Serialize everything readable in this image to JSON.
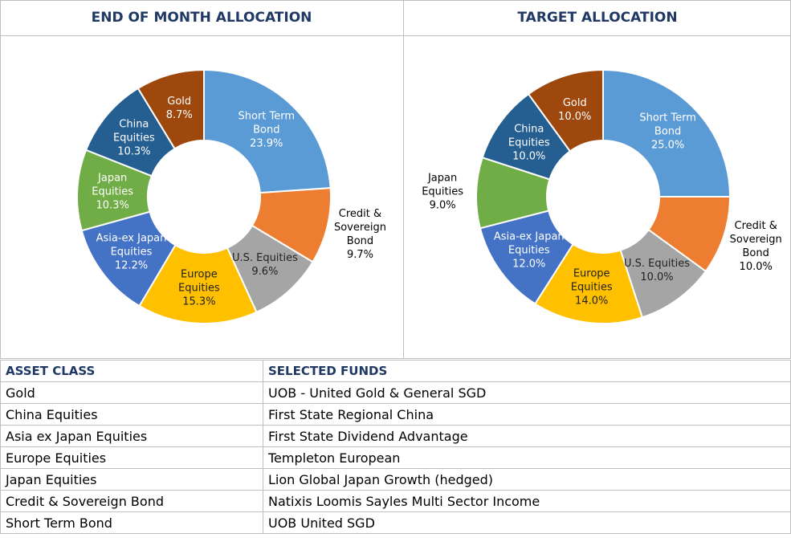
{
  "chart_data": [
    {
      "type": "pie",
      "title": "END OF MONTH ALLOCATION",
      "categories": [
        "Short Term Bond",
        "Credit & Sovereign Bond",
        "U.S. Equities",
        "Europe Equities",
        "Asia-ex Japan Equities",
        "Japan Equities",
        "China Equities",
        "Gold"
      ],
      "values": [
        23.9,
        9.7,
        9.6,
        15.3,
        12.2,
        10.3,
        10.3,
        8.7
      ],
      "value_labels": [
        "23.9%",
        "9.7%",
        "9.6%",
        "15.3%",
        "12.2%",
        "10.3%",
        "10.3%",
        "8.7%"
      ],
      "colors": [
        "#5b9bd5",
        "#ed7d31",
        "#a5a5a5",
        "#ffc000",
        "#4472c4",
        "#70ad47",
        "#255e91",
        "#9e480e"
      ]
    },
    {
      "type": "pie",
      "title": "TARGET ALLOCATION",
      "categories": [
        "Short Term Bond",
        "Credit & Sovereign Bond",
        "U.S. Equities",
        "Europe Equities",
        "Asia-ex Japan Equities",
        "Japan Equities",
        "China Equities",
        "Gold"
      ],
      "values": [
        25.0,
        10.0,
        10.0,
        14.0,
        12.0,
        9.0,
        10.0,
        10.0
      ],
      "value_labels": [
        "25.0%",
        "10.0%",
        "10.0%",
        "14.0%",
        "12.0%",
        "9.0%",
        "10.0%",
        "10.0%"
      ],
      "colors": [
        "#5b9bd5",
        "#ed7d31",
        "#a5a5a5",
        "#ffc000",
        "#4472c4",
        "#70ad47",
        "#255e91",
        "#9e480e"
      ]
    }
  ],
  "table": {
    "headers": [
      "ASSET CLASS",
      "SELECTED FUNDS"
    ],
    "rows": [
      [
        "Gold",
        "UOB - United Gold & General SGD"
      ],
      [
        "China Equities",
        "First State Regional China"
      ],
      [
        "Asia ex Japan Equities",
        "First State Dividend Advantage"
      ],
      [
        "Europe Equities",
        "Templeton European"
      ],
      [
        "Japan Equities",
        "Lion Global Japan Growth (hedged)"
      ],
      [
        "Credit & Sovereign Bond",
        "Natixis Loomis Sayles Multi Sector Income"
      ],
      [
        "Short Term Bond",
        "UOB United SGD"
      ]
    ]
  }
}
